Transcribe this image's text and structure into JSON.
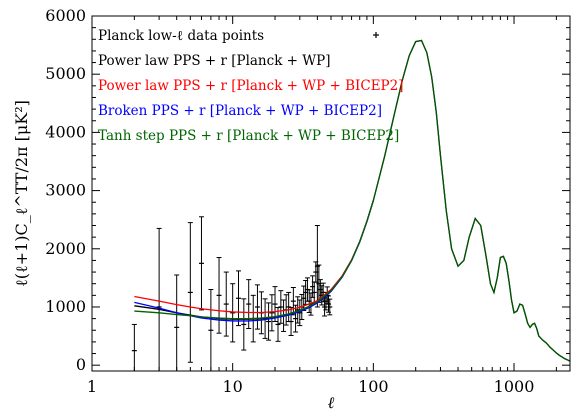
{
  "chart_data": {
    "type": "line",
    "xscale": "log",
    "xlim": [
      1,
      2500
    ],
    "ylim": [
      -100,
      6000
    ],
    "xlabel": "ℓ",
    "ylabel": "ℓ(ℓ+1)C_ℓ^TT/2π [μK²]",
    "x_ticks": [
      {
        "value": 1,
        "label": "1"
      },
      {
        "value": 10,
        "label": "10"
      },
      {
        "value": 100,
        "label": "100"
      },
      {
        "value": 1000,
        "label": "1000"
      }
    ],
    "y_ticks": [
      {
        "value": 0,
        "label": "0"
      },
      {
        "value": 1000,
        "label": "1000"
      },
      {
        "value": 2000,
        "label": "2000"
      },
      {
        "value": 3000,
        "label": "3000"
      },
      {
        "value": 4000,
        "label": "4000"
      },
      {
        "value": 5000,
        "label": "5000"
      },
      {
        "value": 6000,
        "label": "6000"
      }
    ],
    "legend_position": "top-left",
    "legend": [
      {
        "label": "Planck low-ℓ data points",
        "color": "#000000",
        "marker": "+"
      },
      {
        "label": "Power law PPS + r [Planck + WP]",
        "color": "#000000"
      },
      {
        "label": "Power law PPS + r [Planck + WP + BICEP2]",
        "color": "#ff0000"
      },
      {
        "label": "Broken PPS + r [Planck + WP + BICEP2]",
        "color": "#0000ff"
      },
      {
        "label": "Tanh step PPS + r [Planck + WP + BICEP2]",
        "color": "#006400"
      }
    ],
    "data_points": {
      "x": [
        2,
        3,
        4,
        5,
        6,
        7,
        8,
        9,
        10,
        11,
        12,
        13,
        14,
        15,
        16,
        17,
        18,
        19,
        20,
        21,
        22,
        23,
        24,
        25,
        26,
        27,
        28,
        29,
        30,
        31,
        32,
        33,
        34,
        35,
        36,
        37,
        38,
        39,
        40,
        41,
        42,
        43,
        44,
        45,
        46,
        47,
        48,
        49
      ],
      "y": [
        250,
        1000,
        650,
        1250,
        1750,
        600,
        1200,
        1050,
        900,
        1150,
        700,
        1050,
        800,
        1000,
        900,
        800,
        750,
        900,
        1050,
        700,
        1000,
        850,
        950,
        1000,
        750,
        1100,
        800,
        950,
        900,
        1000,
        1150,
        1250,
        1300,
        1100,
        1050,
        1350,
        1250,
        1600,
        1700,
        1400,
        1300,
        1200,
        1250,
        1000,
        1100,
        1200,
        1050,
        1000
      ],
      "err": [
        450,
        1350,
        900,
        1200,
        800,
        700,
        650,
        550,
        500,
        470,
        440,
        420,
        400,
        380,
        360,
        340,
        320,
        310,
        300,
        290,
        280,
        270,
        260,
        250,
        240,
        235,
        230,
        225,
        220,
        215,
        210,
        205,
        200,
        195,
        190,
        185,
        180,
        175,
        700,
        320,
        170,
        165,
        160,
        155,
        150,
        145,
        140,
        135
      ]
    },
    "series": [
      {
        "name": "Power law PPS + r [Planck + WP]",
        "color": "#000000",
        "x": [
          2,
          3,
          4,
          5,
          6,
          8,
          10,
          13,
          16,
          20,
          25,
          30,
          35,
          40,
          50,
          60,
          70,
          80,
          90,
          100,
          120,
          140,
          160,
          180,
          200,
          220,
          240,
          260,
          280,
          300,
          330,
          360,
          400,
          440,
          480,
          530,
          580,
          630,
          680,
          720,
          760,
          800,
          840,
          880,
          920,
          960,
          1000,
          1050,
          1100,
          1150,
          1200,
          1250,
          1300,
          1350,
          1400,
          1450,
          1500,
          1600,
          1700,
          1800,
          1900,
          2000,
          2100,
          2200,
          2300,
          2400,
          2500
        ],
        "y": [
          1020,
          960,
          900,
          860,
          830,
          800,
          790,
          790,
          800,
          830,
          880,
          940,
          1010,
          1090,
          1280,
          1520,
          1800,
          2120,
          2470,
          2830,
          3580,
          4280,
          4880,
          5320,
          5560,
          5580,
          5370,
          4950,
          4350,
          3600,
          2650,
          2000,
          1700,
          1800,
          2200,
          2520,
          2400,
          1900,
          1400,
          1250,
          1500,
          1850,
          1870,
          1750,
          1450,
          1120,
          900,
          930,
          1050,
          1030,
          880,
          720,
          650,
          700,
          720,
          630,
          500,
          430,
          380,
          310,
          260,
          210,
          170,
          140,
          110,
          90,
          70
        ]
      },
      {
        "name": "Power law PPS + r [Planck + WP + BICEP2]",
        "color": "#ff0000",
        "x": [
          2,
          3,
          4,
          5,
          6,
          8,
          10,
          13,
          16,
          20,
          25,
          30,
          35,
          40,
          50,
          60,
          70,
          80,
          90,
          100
        ],
        "y": [
          1180,
          1100,
          1040,
          1000,
          970,
          935,
          915,
          905,
          905,
          920,
          950,
          995,
          1050,
          1110,
          1300,
          1535,
          1810,
          2125,
          2475,
          2830
        ]
      },
      {
        "name": "Broken PPS + r [Planck + WP + BICEP2]",
        "color": "#0000ff",
        "x": [
          2,
          3,
          4,
          5,
          6,
          8,
          10,
          13,
          16,
          20,
          25,
          30,
          35,
          40,
          50,
          60,
          70,
          80,
          90,
          100
        ],
        "y": [
          1080,
          980,
          900,
          850,
          810,
          775,
          760,
          760,
          775,
          810,
          860,
          920,
          990,
          1070,
          1265,
          1510,
          1795,
          2115,
          2470,
          2830
        ]
      },
      {
        "name": "Tanh step PPS + r [Planck + WP + BICEP2]",
        "color": "#006400",
        "x": [
          2,
          3,
          4,
          5,
          6,
          8,
          10,
          13,
          16,
          20,
          25,
          30,
          35,
          40,
          50,
          60,
          70,
          80,
          90,
          100
        ],
        "y": [
          930,
          900,
          870,
          850,
          830,
          810,
          800,
          800,
          810,
          835,
          880,
          940,
          1010,
          1090,
          1280,
          1520,
          1800,
          2120,
          2470,
          2830
        ]
      }
    ]
  }
}
